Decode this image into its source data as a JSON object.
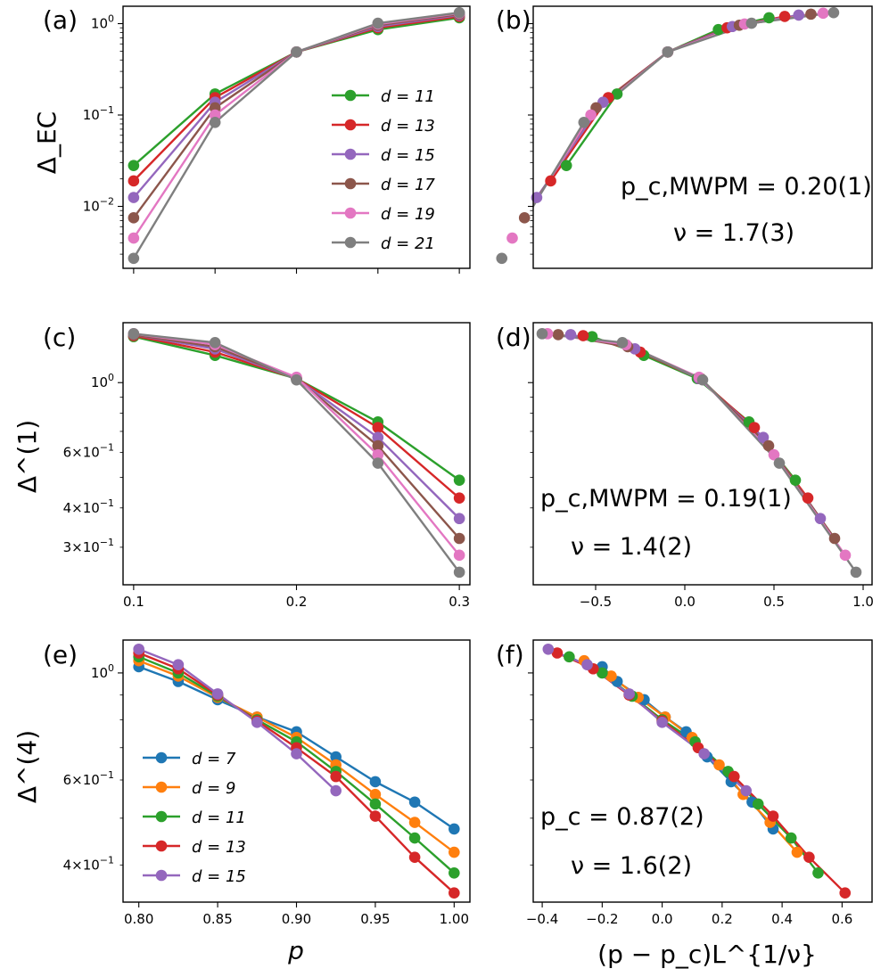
{
  "colors": {
    "d7": "#1f77b4",
    "d9": "#ff7f0e",
    "d11": "#2ca02c",
    "d13": "#d62728",
    "d15": "#9467bd",
    "d17": "#8c564b",
    "d19": "#e377c2",
    "d21": "#7f7f7f"
  },
  "chart_data": [
    {
      "panel": "a",
      "panel_label": "(a)",
      "type": "line",
      "yscale": "log",
      "ylabel": "Δ_EC",
      "ylim": [
        0.0021,
        1.55
      ],
      "xlim": [
        0.0935,
        0.3065
      ],
      "x": [
        0.1,
        0.15,
        0.2,
        0.25,
        0.3
      ],
      "ytick_labels": [
        {
          "value": 1,
          "label": "10",
          "exp": "0"
        },
        {
          "value": 0.1,
          "label": "10",
          "exp": "−1"
        },
        {
          "value": 0.01,
          "label": "10",
          "exp": "−2"
        }
      ],
      "legend": {
        "placement": "center-right"
      },
      "series": [
        {
          "name": "d = 11",
          "color": "#2ca02c",
          "values": [
            0.028,
            0.17,
            0.49,
            0.86,
            1.16
          ]
        },
        {
          "name": "d = 13",
          "color": "#d62728",
          "values": [
            0.019,
            0.155,
            0.49,
            0.9,
            1.2
          ]
        },
        {
          "name": "d = 15",
          "color": "#9467bd",
          "values": [
            0.0125,
            0.138,
            0.49,
            0.93,
            1.24
          ]
        },
        {
          "name": "d = 17",
          "color": "#8c564b",
          "values": [
            0.0075,
            0.12,
            0.49,
            0.96,
            1.27
          ]
        },
        {
          "name": "d = 19",
          "color": "#e377c2",
          "values": [
            0.0045,
            0.1,
            0.49,
            0.99,
            1.3
          ]
        },
        {
          "name": "d = 21",
          "color": "#7f7f7f",
          "values": [
            0.0027,
            0.083,
            0.49,
            1.01,
            1.32
          ]
        }
      ]
    },
    {
      "panel": "b",
      "panel_label": "(b)",
      "type": "scatter-line",
      "yscale": "log",
      "ylim": [
        0.0021,
        1.55
      ],
      "xlim": [
        -0.77,
        1.17
      ],
      "annotations": [
        "p_c,MWPM = 0.20(1)",
        "ν = 1.7(3)"
      ],
      "series": [
        {
          "name": "d = 11",
          "color": "#2ca02c",
          "x": [
            -0.58,
            -0.29,
            0.0,
            0.29,
            0.58
          ],
          "values": [
            0.028,
            0.17,
            0.49,
            0.86,
            1.16
          ]
        },
        {
          "name": "d = 13",
          "color": "#d62728",
          "x": [
            -0.67,
            -0.34,
            0.0,
            0.34,
            0.67
          ],
          "values": [
            0.019,
            0.155,
            0.49,
            0.9,
            1.2
          ]
        },
        {
          "name": "d = 15",
          "color": "#9467bd",
          "x": [
            -0.75,
            -0.37,
            0.0,
            0.37,
            0.75
          ],
          "values": [
            0.0125,
            0.138,
            0.49,
            0.93,
            1.24
          ]
        },
        {
          "name": "d = 17",
          "color": "#8c564b",
          "x": [
            -0.82,
            -0.41,
            0.0,
            0.41,
            0.82
          ],
          "values": [
            0.0075,
            0.12,
            0.49,
            0.96,
            1.27
          ]
        },
        {
          "name": "d = 19",
          "color": "#e377c2",
          "x": [
            -0.89,
            -0.44,
            0.0,
            0.44,
            0.89
          ],
          "values": [
            0.0045,
            0.1,
            0.49,
            0.99,
            1.3
          ]
        },
        {
          "name": "d = 21",
          "color": "#7f7f7f",
          "x": [
            -0.95,
            -0.48,
            0.0,
            0.48,
            0.95
          ],
          "values": [
            0.0027,
            0.083,
            0.49,
            1.01,
            1.32
          ]
        }
      ]
    },
    {
      "panel": "c",
      "panel_label": "(c)",
      "type": "line",
      "yscale": "log",
      "ylabel": "Δ^(1)",
      "ylim": [
        0.228,
        1.55
      ],
      "xlim": [
        0.0935,
        0.3065
      ],
      "x": [
        0.1,
        0.15,
        0.2,
        0.25,
        0.3
      ],
      "xtick_labels": [
        "0.1",
        "0.2",
        "0.3"
      ],
      "ytick_labels": [
        {
          "value": 1,
          "label": "10",
          "exp": "0"
        },
        {
          "value": 0.6,
          "label": "6×10",
          "exp": "−1"
        },
        {
          "value": 0.4,
          "label": "4×10",
          "exp": "−1"
        },
        {
          "value": 0.3,
          "label": "3×10",
          "exp": "−1"
        }
      ],
      "series": [
        {
          "name": "d = 11",
          "color": "#2ca02c",
          "values": [
            1.4,
            1.22,
            1.03,
            0.75,
            0.49
          ]
        },
        {
          "name": "d = 13",
          "color": "#d62728",
          "values": [
            1.41,
            1.25,
            1.03,
            0.72,
            0.43
          ]
        },
        {
          "name": "d = 15",
          "color": "#9467bd",
          "values": [
            1.42,
            1.28,
            1.03,
            0.67,
            0.37
          ]
        },
        {
          "name": "d = 17",
          "color": "#8c564b",
          "values": [
            1.42,
            1.3,
            1.03,
            0.63,
            0.32
          ]
        },
        {
          "name": "d = 19",
          "color": "#e377c2",
          "values": [
            1.43,
            1.32,
            1.04,
            0.59,
            0.283
          ]
        },
        {
          "name": "d = 21",
          "color": "#7f7f7f",
          "values": [
            1.43,
            1.34,
            1.02,
            0.555,
            0.25
          ]
        }
      ]
    },
    {
      "panel": "d",
      "panel_label": "(d)",
      "type": "scatter-line",
      "yscale": "log",
      "ylim": [
        0.228,
        1.55
      ],
      "xlim": [
        -0.85,
        1.05
      ],
      "xtick_labels": [
        "−0.5",
        "0.0",
        "0.5",
        "1.0"
      ],
      "annotations": [
        "p_c,MWPM = 0.19(1)",
        "ν = 1.4(2)"
      ],
      "series": [
        {
          "name": "d = 11",
          "color": "#2ca02c",
          "x": [
            -0.52,
            -0.23,
            0.07,
            0.36,
            0.62
          ],
          "values": [
            1.4,
            1.22,
            1.03,
            0.75,
            0.49
          ]
        },
        {
          "name": "d = 13",
          "color": "#d62728",
          "x": [
            -0.57,
            -0.25,
            0.08,
            0.39,
            0.69
          ],
          "values": [
            1.41,
            1.25,
            1.03,
            0.72,
            0.43
          ]
        },
        {
          "name": "d = 15",
          "color": "#9467bd",
          "x": [
            -0.64,
            -0.28,
            0.08,
            0.44,
            0.76
          ],
          "values": [
            1.42,
            1.28,
            1.03,
            0.67,
            0.37
          ]
        },
        {
          "name": "d = 17",
          "color": "#8c564b",
          "x": [
            -0.71,
            -0.32,
            0.09,
            0.47,
            0.84
          ],
          "values": [
            1.42,
            1.3,
            1.03,
            0.63,
            0.32
          ]
        },
        {
          "name": "d = 19",
          "color": "#e377c2",
          "x": [
            -0.77,
            -0.33,
            0.08,
            0.5,
            0.9
          ],
          "values": [
            1.43,
            1.32,
            1.04,
            0.59,
            0.283
          ]
        },
        {
          "name": "d = 21",
          "color": "#7f7f7f",
          "x": [
            -0.8,
            -0.35,
            0.1,
            0.53,
            0.96
          ],
          "values": [
            1.43,
            1.34,
            1.02,
            0.555,
            0.25
          ]
        }
      ]
    },
    {
      "panel": "e",
      "panel_label": "(e)",
      "type": "line",
      "yscale": "log",
      "ylabel": "Δ^(4)",
      "xlabel": "p",
      "ylim": [
        0.335,
        1.17
      ],
      "xlim": [
        0.79,
        1.01
      ],
      "xtick_labels": [
        "0.80",
        "0.85",
        "0.90",
        "0.95",
        "1.00"
      ],
      "ytick_labels": [
        {
          "value": 1,
          "label": "10",
          "exp": "0"
        },
        {
          "value": 0.6,
          "label": "6×10",
          "exp": "−1"
        },
        {
          "value": 0.4,
          "label": "4×10",
          "exp": "−1"
        }
      ],
      "legend": {
        "placement": "lower-left"
      },
      "series": [
        {
          "name": "d = 7",
          "color": "#1f77b4",
          "x": [
            0.8,
            0.825,
            0.85,
            0.875,
            0.9,
            0.925,
            0.95,
            0.975,
            1.0
          ],
          "values": [
            1.03,
            0.96,
            0.88,
            0.81,
            0.755,
            0.67,
            0.595,
            0.54,
            0.475
          ]
        },
        {
          "name": "d = 9",
          "color": "#ff7f0e",
          "x": [
            0.8,
            0.825,
            0.85,
            0.875,
            0.9,
            0.925,
            0.95,
            0.975,
            1.0
          ],
          "values": [
            1.06,
            0.985,
            0.89,
            0.81,
            0.735,
            0.645,
            0.56,
            0.49,
            0.425
          ]
        },
        {
          "name": "d = 11",
          "color": "#2ca02c",
          "x": [
            0.8,
            0.825,
            0.85,
            0.875,
            0.9,
            0.925,
            0.95,
            0.975,
            1.0
          ],
          "values": [
            1.08,
            1.0,
            0.895,
            0.8,
            0.72,
            0.625,
            0.535,
            0.455,
            0.385
          ]
        },
        {
          "name": "d = 13",
          "color": "#d62728",
          "x": [
            0.8,
            0.825,
            0.85,
            0.875,
            0.9,
            0.925,
            0.95,
            0.975,
            1.0
          ],
          "values": [
            1.1,
            1.02,
            0.9,
            0.795,
            0.7,
            0.61,
            0.505,
            0.415,
            0.35
          ]
        },
        {
          "name": "d = 15",
          "color": "#9467bd",
          "x": [
            0.8,
            0.825,
            0.85,
            0.875,
            0.9,
            0.925
          ],
          "values": [
            1.12,
            1.04,
            0.905,
            0.79,
            0.68,
            0.57
          ]
        }
      ]
    },
    {
      "panel": "f",
      "panel_label": "(f)",
      "type": "scatter-line",
      "yscale": "log",
      "xlabel": "(p − p_c)L^{1/ν}",
      "ylim": [
        0.335,
        1.17
      ],
      "xlim": [
        -0.43,
        0.7
      ],
      "xtick_labels": [
        "−0.4",
        "−0.2",
        "0.0",
        "0.2",
        "0.4",
        "0.6"
      ],
      "annotations": [
        "p_c = 0.87(2)",
        "ν = 1.6(2)"
      ],
      "series": [
        {
          "name": "d = 7",
          "color": "#1f77b4",
          "x": [
            -0.2,
            -0.15,
            -0.06,
            0.01,
            0.08,
            0.15,
            0.23,
            0.3,
            0.37
          ],
          "values": [
            1.03,
            0.96,
            0.88,
            0.81,
            0.755,
            0.67,
            0.595,
            0.54,
            0.475
          ]
        },
        {
          "name": "d = 9",
          "color": "#ff7f0e",
          "x": [
            -0.26,
            -0.17,
            -0.08,
            0.01,
            0.1,
            0.19,
            0.27,
            0.36,
            0.45
          ],
          "values": [
            1.06,
            0.985,
            0.89,
            0.81,
            0.735,
            0.645,
            0.56,
            0.49,
            0.425
          ]
        },
        {
          "name": "d = 11",
          "color": "#2ca02c",
          "x": [
            -0.31,
            -0.2,
            -0.1,
            0.0,
            0.11,
            0.22,
            0.32,
            0.43,
            0.52
          ],
          "values": [
            1.08,
            1.0,
            0.895,
            0.8,
            0.72,
            0.625,
            0.535,
            0.455,
            0.385
          ]
        },
        {
          "name": "d = 13",
          "color": "#d62728",
          "x": [
            -0.35,
            -0.23,
            -0.11,
            0.0,
            0.12,
            0.24,
            0.37,
            0.49,
            0.61
          ],
          "values": [
            1.1,
            1.02,
            0.9,
            0.795,
            0.7,
            0.61,
            0.505,
            0.415,
            0.35
          ]
        },
        {
          "name": "d = 15",
          "color": "#9467bd",
          "x": [
            -0.38,
            -0.25,
            -0.11,
            0.0,
            0.14,
            0.28
          ],
          "values": [
            1.12,
            1.04,
            0.905,
            0.79,
            0.68,
            0.57
          ]
        }
      ]
    }
  ]
}
